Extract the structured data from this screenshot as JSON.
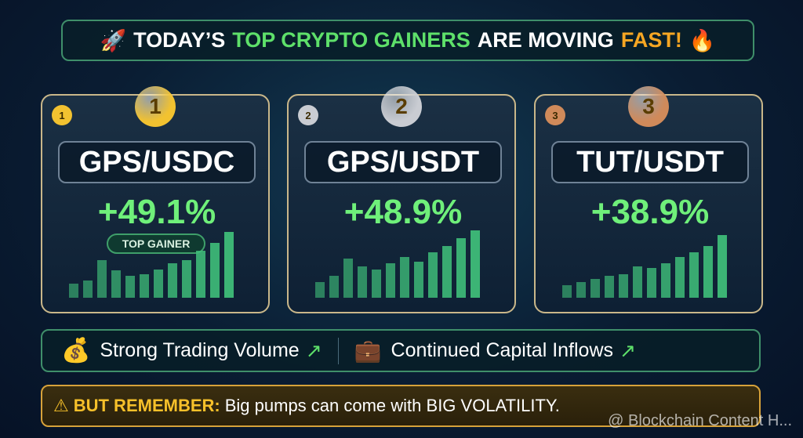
{
  "header": {
    "title_parts": [
      "TODAY’S",
      "TOP CRYPTO GAINERS",
      "ARE MOVING",
      "FAST!"
    ]
  },
  "cards": [
    {
      "rank": "1",
      "pair": "GPS/USDC",
      "change": "+49.1%",
      "badge": "TOP GAINER"
    },
    {
      "rank": "2",
      "pair": "GPS/USDT",
      "change": "+48.9%"
    },
    {
      "rank": "3",
      "pair": "TUT/USDT",
      "change": "+38.9%"
    }
  ],
  "features": [
    "Strong Trading Volume",
    "Continued Capital Inflows"
  ],
  "warning": {
    "label": "BUT REMEMBER:",
    "text": "Big pumps can come with BIG VOLATILITY."
  },
  "watermark": "@ Blockchain Content H..."
}
